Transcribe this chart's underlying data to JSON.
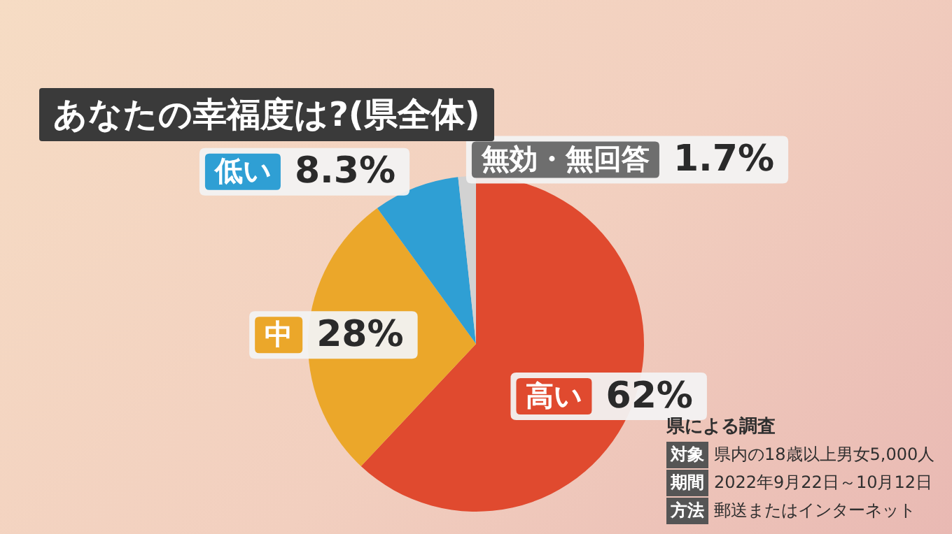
{
  "chart_data": {
    "type": "pie",
    "title": "あなたの幸福度は?(県全体)",
    "categories": [
      "高い",
      "中",
      "低い",
      "無効・無回答"
    ],
    "values": [
      62,
      28,
      8.3,
      1.7
    ],
    "value_labels": [
      "62%",
      "28%",
      "8.3%",
      "1.7%"
    ],
    "colors": [
      "#e04a2f",
      "#eba72a",
      "#2f9fd4",
      "#d2d2d2"
    ],
    "legend": false,
    "annotations": [
      "県による調査",
      "対象",
      "県内の18歳以上男女5,000人",
      "期間",
      "2022年9月22日～10月12日",
      "方法",
      "郵送またはインターネット"
    ]
  }
}
